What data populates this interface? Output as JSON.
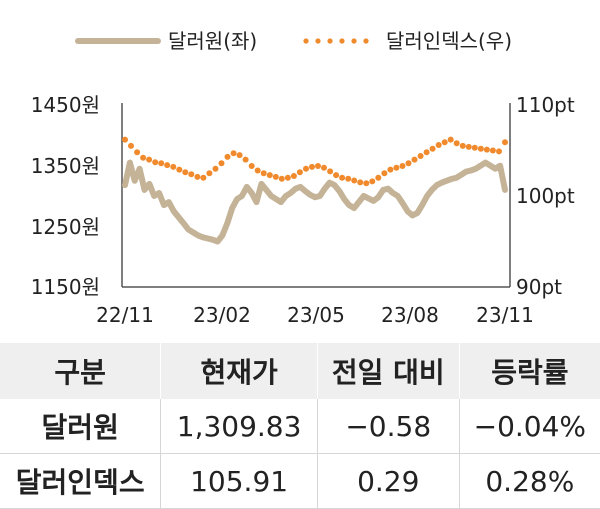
{
  "chart_data": {
    "type": "line",
    "legend": [
      {
        "name": "달러원(좌)",
        "color": "#c4b397",
        "style": "solid"
      },
      {
        "name": "달러인덱스(우)",
        "color": "#f08a2c",
        "style": "dotted"
      }
    ],
    "legend_placement": "top",
    "x_ticks": [
      "22/11",
      "23/02",
      "23/05",
      "23/08",
      "23/11"
    ],
    "y_left": {
      "ticks": [
        "1450원",
        "1350원",
        "1250원",
        "1150원"
      ],
      "range": [
        1150,
        1450
      ]
    },
    "y_right": {
      "ticks": [
        "110pt",
        "100pt",
        "90pt"
      ],
      "range": [
        90,
        110
      ]
    },
    "grid": false,
    "series": [
      {
        "name": "달러원(좌)",
        "axis": "left",
        "values": [
          1318,
          1355,
          1325,
          1345,
          1310,
          1320,
          1300,
          1305,
          1285,
          1290,
          1275,
          1265,
          1255,
          1245,
          1240,
          1235,
          1232,
          1230,
          1228,
          1225,
          1235,
          1255,
          1280,
          1295,
          1300,
          1315,
          1305,
          1290,
          1320,
          1310,
          1300,
          1295,
          1290,
          1300,
          1305,
          1312,
          1315,
          1308,
          1302,
          1298,
          1300,
          1312,
          1322,
          1318,
          1308,
          1295,
          1285,
          1280,
          1290,
          1300,
          1296,
          1292,
          1298,
          1310,
          1312,
          1305,
          1300,
          1288,
          1275,
          1268,
          1272,
          1285,
          1300,
          1310,
          1318,
          1322,
          1325,
          1328,
          1330,
          1335,
          1340,
          1342,
          1345,
          1350,
          1355,
          1350,
          1345,
          1350,
          1310
        ]
      },
      {
        "name": "달러인덱스(우)",
        "axis": "right",
        "values": [
          106.2,
          105.5,
          104.8,
          104.2,
          104.0,
          103.7,
          103.6,
          103.4,
          103.2,
          102.9,
          102.6,
          102.4,
          102.1,
          102.0,
          102.5,
          103.0,
          103.6,
          104.3,
          104.7,
          104.5,
          104.0,
          103.3,
          102.8,
          102.5,
          102.3,
          102.1,
          101.9,
          102.0,
          102.2,
          102.6,
          103.0,
          103.2,
          103.3,
          103.1,
          102.7,
          102.3,
          102.0,
          101.9,
          101.7,
          101.5,
          101.4,
          101.6,
          102.0,
          102.5,
          102.9,
          103.1,
          103.3,
          103.6,
          104.0,
          104.4,
          104.8,
          105.2,
          105.6,
          105.9,
          106.2,
          105.8,
          105.5,
          105.4,
          105.3,
          105.2,
          105.1,
          105.0,
          104.9,
          105.91
        ]
      }
    ]
  },
  "table": {
    "headers": [
      "구분",
      "현재가",
      "전일 대비",
      "등락률"
    ],
    "rows": [
      [
        "달러원",
        "1,309.83",
        "−0.58",
        "−0.04%"
      ],
      [
        "달러인덱스",
        "105.91",
        "0.29",
        "0.28%"
      ]
    ]
  }
}
